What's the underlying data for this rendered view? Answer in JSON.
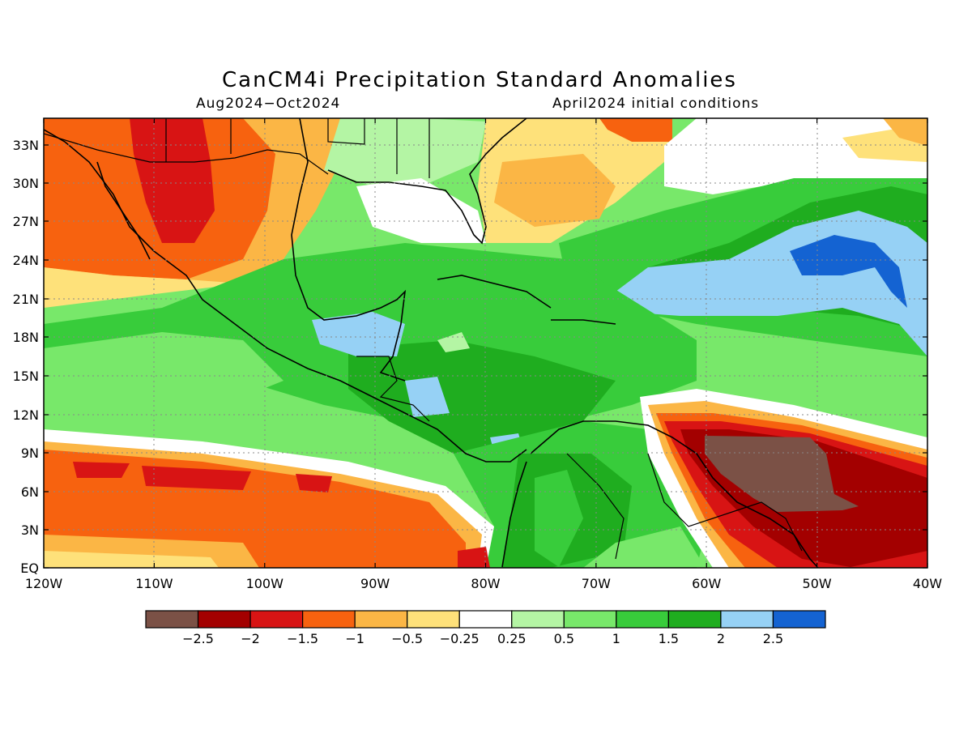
{
  "title": "CanCM4i Precipitation Standard Anomalies",
  "subtitle_left": "Aug2024−Oct2024",
  "subtitle_right": "April2024 initial conditions",
  "lat_labels": [
    "33N",
    "30N",
    "27N",
    "24N",
    "21N",
    "18N",
    "15N",
    "12N",
    "9N",
    "6N",
    "3N",
    "EQ"
  ],
  "lon_labels": [
    "120W",
    "110W",
    "100W",
    "90W",
    "80W",
    "70W",
    "60W",
    "50W",
    "40W"
  ],
  "colorbar": {
    "colors": [
      "#7b5146",
      "#a30000",
      "#d81414",
      "#f7620f",
      "#fbb645",
      "#fee17a",
      "#ffffff",
      "#b4f5a4",
      "#78e86a",
      "#38cc3b",
      "#1fad1f",
      "#96d1f5",
      "#1463d2"
    ],
    "labels": [
      "−2.5",
      "−2",
      "−1.5",
      "−1",
      "−0.5",
      "−0.25",
      "0.25",
      "0.5",
      "1",
      "1.5",
      "2",
      "2.5"
    ]
  },
  "legend_colors": {
    "deep_brown": "#7b5146",
    "dark_red": "#a30000",
    "red": "#d81414",
    "orange": "#f7620f",
    "light_orange": "#fbb645",
    "yellow": "#fee17a",
    "white": "#ffffff",
    "pale_green": "#b4f5a4",
    "light_green": "#78e86a",
    "green": "#38cc3b",
    "dark_green": "#1fad1f",
    "light_blue": "#96d1f5",
    "blue": "#1463d2"
  }
}
